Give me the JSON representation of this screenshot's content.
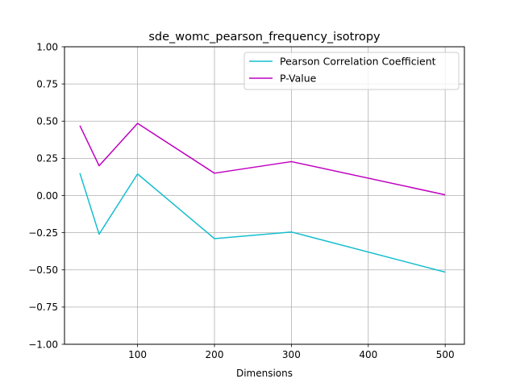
{
  "chart_data": {
    "type": "line",
    "title": "sde_womc_pearson_frequency_isotropy",
    "xlabel": "Dimensions",
    "ylabel": "",
    "x": [
      25,
      50,
      100,
      200,
      300,
      500
    ],
    "xlim": [
      5,
      525
    ],
    "ylim": [
      -1.0,
      1.0
    ],
    "xticks": [
      100,
      200,
      300,
      400,
      500
    ],
    "xtick_labels": [
      "100",
      "200",
      "300",
      "400",
      "500"
    ],
    "yticks": [
      -1.0,
      -0.75,
      -0.5,
      -0.25,
      0.0,
      0.25,
      0.5,
      0.75,
      1.0
    ],
    "ytick_labels": [
      "−1.00",
      "−0.75",
      "−0.50",
      "−0.25",
      "0.00",
      "0.25",
      "0.50",
      "0.75",
      "1.00"
    ],
    "grid": true,
    "legend_position": "top-right",
    "series": [
      {
        "name": "Pearson Correlation Coefficient",
        "color": "#17becf",
        "values": [
          0.15,
          -0.26,
          0.145,
          -0.29,
          -0.245,
          -0.515
        ]
      },
      {
        "name": "P-Value",
        "color": "#bf00bf",
        "values": [
          0.47,
          0.2,
          0.485,
          0.15,
          0.228,
          0.005
        ]
      }
    ]
  }
}
